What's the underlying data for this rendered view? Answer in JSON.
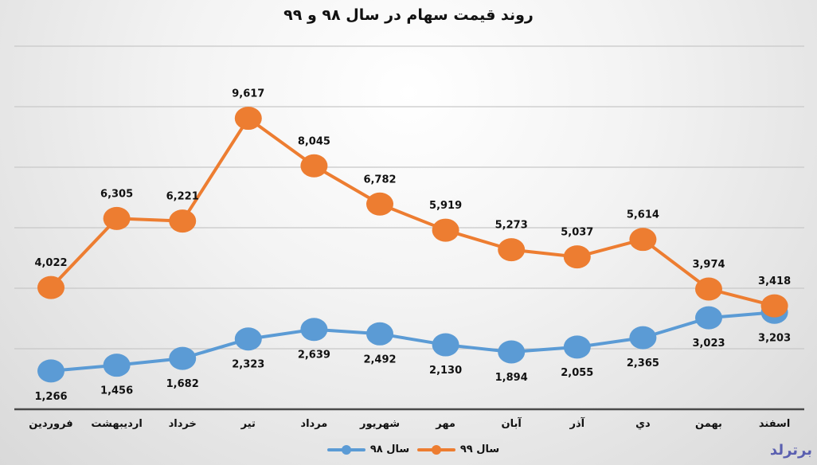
{
  "title": "روند قیمت سهام در سال ۹۸ و ۹۹",
  "legend": {
    "series99": "سال ۹۹",
    "series98": "سال ۹۸"
  },
  "logo": "برترلد",
  "colors": {
    "series99": "#ed7d31",
    "series98": "#5b9bd5"
  },
  "chart_data": {
    "type": "line",
    "title": "روند قیمت سهام در سال ۹۸ و ۹۹",
    "xlabel": "",
    "ylabel": "",
    "ylim": [
      0,
      12000
    ],
    "grid": true,
    "legend_position": "bottom",
    "categories": [
      "فروردین",
      "اردیبهشت",
      "خرداد",
      "تیر",
      "مرداد",
      "شهریور",
      "مهر",
      "آبان",
      "آذر",
      "دي",
      "بهمن",
      "اسفند"
    ],
    "series": [
      {
        "name": "سال ۹۸",
        "color": "#5b9bd5",
        "values": [
          1266,
          1456,
          1682,
          2323,
          2639,
          2492,
          2130,
          1894,
          2055,
          2365,
          3023,
          3203
        ],
        "labels": [
          "1,266",
          "1,456",
          "1,682",
          "2,323",
          "2,639",
          "2,492",
          "2,130",
          "1,894",
          "2,055",
          "2,365",
          "3,023",
          "3,203"
        ]
      },
      {
        "name": "سال ۹۹",
        "color": "#ed7d31",
        "values": [
          4022,
          6305,
          6221,
          9617,
          8045,
          6782,
          5919,
          5273,
          5037,
          5614,
          3974,
          3418
        ],
        "labels": [
          "4,022",
          "6,305",
          "6,221",
          "9,617",
          "8,045",
          "6,782",
          "5,919",
          "5,273",
          "5,037",
          "5,614",
          "3,974",
          "3,418"
        ]
      }
    ]
  }
}
